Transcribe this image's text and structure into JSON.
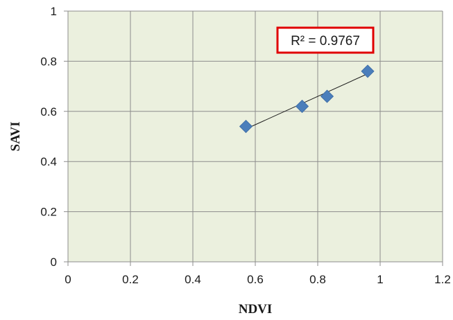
{
  "chart_data": {
    "type": "scatter",
    "title": "",
    "xlabel": "NDVI",
    "ylabel": "SAVI",
    "xlim": [
      0,
      1.2
    ],
    "ylim": [
      0,
      1
    ],
    "x_ticks": [
      "0",
      "0.2",
      "0.4",
      "0.6",
      "0.8",
      "1",
      "1.2"
    ],
    "y_ticks": [
      "0",
      "0.2",
      "0.4",
      "0.6",
      "0.8",
      "1"
    ],
    "grid": true,
    "legend": "none",
    "series": [
      {
        "points": [
          {
            "x": 0.57,
            "y": 0.54
          },
          {
            "x": 0.75,
            "y": 0.62
          },
          {
            "x": 0.83,
            "y": 0.66
          },
          {
            "x": 0.96,
            "y": 0.76
          }
        ],
        "marker": "diamond",
        "color": "#4a7ebb"
      }
    ],
    "trendline": {
      "type": "linear",
      "from": {
        "x": 0.57,
        "y": 0.53
      },
      "to": {
        "x": 0.96,
        "y": 0.75
      },
      "color": "#1a1a1a"
    },
    "annotation": {
      "text": "R² = 0.9767",
      "border_color": "#e00000"
    },
    "plot_background": "#ebf0de",
    "grid_color": "#8c8c8c"
  }
}
